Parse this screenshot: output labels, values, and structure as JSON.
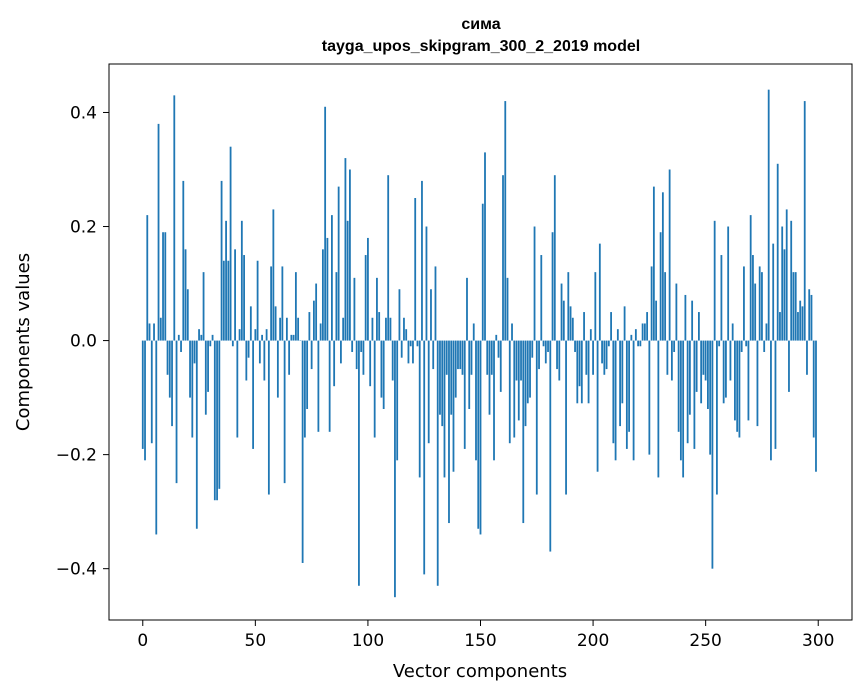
{
  "chart_data": {
    "type": "bar",
    "title": "сима",
    "subtitle": "tayga_upos_skipgram_300_2_2019 model",
    "xlabel": "Vector components",
    "ylabel": "Components values",
    "xlim": [
      -15,
      315
    ],
    "ylim": [
      -0.49,
      0.485
    ],
    "xticks": [
      0,
      50,
      100,
      150,
      200,
      250,
      300
    ],
    "xtick_labels": [
      "0",
      "50",
      "100",
      "150",
      "200",
      "250",
      "300"
    ],
    "yticks": [
      -0.4,
      -0.2,
      0.0,
      0.2,
      0.4
    ],
    "ytick_labels": [
      "−0.4",
      "−0.2",
      "0.0",
      "0.2",
      "0.4"
    ],
    "bar_color": "#1f77b4",
    "grid": false,
    "x": [
      0,
      1,
      2,
      3,
      4,
      5,
      6,
      7,
      8,
      9,
      10,
      11,
      12,
      13,
      14,
      15,
      16,
      17,
      18,
      19,
      20,
      21,
      22,
      23,
      24,
      25,
      26,
      27,
      28,
      29,
      30,
      31,
      32,
      33,
      34,
      35,
      36,
      37,
      38,
      39,
      40,
      41,
      42,
      43,
      44,
      45,
      46,
      47,
      48,
      49,
      50,
      51,
      52,
      53,
      54,
      55,
      56,
      57,
      58,
      59,
      60,
      61,
      62,
      63,
      64,
      65,
      66,
      67,
      68,
      69,
      70,
      71,
      72,
      73,
      74,
      75,
      76,
      77,
      78,
      79,
      80,
      81,
      82,
      83,
      84,
      85,
      86,
      87,
      88,
      89,
      90,
      91,
      92,
      93,
      94,
      95,
      96,
      97,
      98,
      99,
      100,
      101,
      102,
      103,
      104,
      105,
      106,
      107,
      108,
      109,
      110,
      111,
      112,
      113,
      114,
      115,
      116,
      117,
      118,
      119,
      120,
      121,
      122,
      123,
      124,
      125,
      126,
      127,
      128,
      129,
      130,
      131,
      132,
      133,
      134,
      135,
      136,
      137,
      138,
      139,
      140,
      141,
      142,
      143,
      144,
      145,
      146,
      147,
      148,
      149,
      150,
      151,
      152,
      153,
      154,
      155,
      156,
      157,
      158,
      159,
      160,
      161,
      162,
      163,
      164,
      165,
      166,
      167,
      168,
      169,
      170,
      171,
      172,
      173,
      174,
      175,
      176,
      177,
      178,
      179,
      180,
      181,
      182,
      183,
      184,
      185,
      186,
      187,
      188,
      189,
      190,
      191,
      192,
      193,
      194,
      195,
      196,
      197,
      198,
      199,
      200,
      201,
      202,
      203,
      204,
      205,
      206,
      207,
      208,
      209,
      210,
      211,
      212,
      213,
      214,
      215,
      216,
      217,
      218,
      219,
      220,
      221,
      222,
      223,
      224,
      225,
      226,
      227,
      228,
      229,
      230,
      231,
      232,
      233,
      234,
      235,
      236,
      237,
      238,
      239,
      240,
      241,
      242,
      243,
      244,
      245,
      246,
      247,
      248,
      249,
      250,
      251,
      252,
      253,
      254,
      255,
      256,
      257,
      258,
      259,
      260,
      261,
      262,
      263,
      264,
      265,
      266,
      267,
      268,
      269,
      270,
      271,
      272,
      273,
      274,
      275,
      276,
      277,
      278,
      279,
      280,
      281,
      282,
      283,
      284,
      285,
      286,
      287,
      288,
      289,
      290,
      291,
      292,
      293,
      294,
      295,
      296,
      297,
      298,
      299
    ],
    "values": [
      -0.19,
      -0.21,
      0.22,
      0.03,
      -0.18,
      0.03,
      -0.34,
      0.38,
      0.04,
      0.19,
      0.19,
      -0.06,
      -0.1,
      -0.15,
      0.43,
      -0.25,
      0.01,
      -0.02,
      0.28,
      0.16,
      0.09,
      -0.1,
      -0.17,
      -0.04,
      -0.33,
      0.02,
      0.01,
      0.12,
      -0.13,
      -0.09,
      -0.01,
      0.01,
      -0.28,
      -0.28,
      -0.26,
      0.28,
      0.14,
      0.21,
      0.14,
      0.34,
      -0.01,
      0.16,
      -0.17,
      0.02,
      0.21,
      0.15,
      -0.07,
      -0.03,
      0.06,
      -0.19,
      0.02,
      0.14,
      -0.04,
      0.01,
      -0.07,
      0.02,
      -0.27,
      0.13,
      0.23,
      0.06,
      -0.1,
      0.04,
      0.13,
      -0.25,
      0.04,
      -0.06,
      0.01,
      0.01,
      0.12,
      0.04,
      0.0,
      -0.39,
      -0.17,
      -0.12,
      0.05,
      -0.05,
      0.07,
      0.1,
      -0.16,
      0.03,
      0.16,
      0.41,
      0.18,
      -0.16,
      0.22,
      -0.08,
      0.12,
      0.27,
      -0.04,
      0.04,
      0.32,
      0.21,
      0.3,
      -0.02,
      0.11,
      -0.05,
      -0.43,
      -0.02,
      -0.06,
      0.15,
      0.18,
      -0.08,
      0.04,
      -0.17,
      0.11,
      0.05,
      -0.1,
      -0.12,
      0.04,
      0.29,
      0.04,
      -0.07,
      -0.45,
      -0.21,
      0.09,
      -0.03,
      0.04,
      0.02,
      -0.04,
      -0.01,
      -0.04,
      0.25,
      -0.01,
      -0.24,
      0.28,
      -0.41,
      0.2,
      -0.18,
      0.09,
      -0.05,
      0.13,
      -0.43,
      -0.13,
      -0.15,
      -0.24,
      -0.06,
      -0.32,
      -0.13,
      -0.23,
      -0.1,
      -0.05,
      -0.05,
      -0.06,
      -0.19,
      0.11,
      -0.12,
      -0.06,
      0.03,
      -0.21,
      -0.33,
      -0.34,
      0.24,
      0.33,
      -0.06,
      -0.13,
      -0.06,
      -0.21,
      0.01,
      -0.03,
      -0.09,
      0.29,
      0.42,
      0.11,
      -0.18,
      0.03,
      -0.17,
      -0.07,
      -0.14,
      -0.07,
      -0.32,
      -0.15,
      -0.11,
      -0.1,
      -0.03,
      0.2,
      -0.27,
      -0.05,
      0.15,
      -0.01,
      -0.04,
      -0.02,
      -0.37,
      0.19,
      0.29,
      -0.05,
      -0.07,
      0.1,
      0.07,
      -0.27,
      0.12,
      0.06,
      0.04,
      -0.02,
      -0.11,
      -0.08,
      -0.11,
      0.05,
      -0.06,
      -0.11,
      0.02,
      -0.06,
      0.12,
      -0.23,
      0.17,
      -0.04,
      -0.06,
      -0.05,
      -0.01,
      0.05,
      -0.18,
      -0.21,
      0.02,
      -0.15,
      -0.11,
      0.06,
      -0.19,
      -0.16,
      0.01,
      -0.21,
      0.02,
      -0.01,
      -0.01,
      0.03,
      0.03,
      0.05,
      -0.2,
      0.13,
      0.27,
      0.07,
      -0.24,
      0.19,
      0.26,
      0.12,
      -0.06,
      0.3,
      -0.07,
      -0.02,
      0.1,
      -0.16,
      -0.21,
      -0.24,
      0.08,
      -0.18,
      -0.13,
      0.07,
      -0.19,
      -0.09,
      0.05,
      -0.11,
      -0.06,
      -0.07,
      -0.12,
      -0.2,
      -0.4,
      0.21,
      -0.27,
      -0.01,
      0.15,
      -0.11,
      -0.1,
      0.2,
      -0.07,
      0.03,
      -0.14,
      -0.16,
      -0.17,
      -0.02,
      0.13,
      -0.01,
      -0.14,
      0.22,
      0.15,
      0.1,
      -0.15,
      0.13,
      0.12,
      -0.02,
      0.03,
      0.44,
      -0.21,
      0.17,
      -0.19,
      0.31,
      0.05,
      0.2,
      0.16,
      0.23,
      -0.09,
      0.21,
      0.12,
      0.12,
      0.05,
      0.07,
      0.06,
      0.42,
      -0.06,
      0.09,
      0.08,
      -0.17,
      -0.23
    ]
  }
}
